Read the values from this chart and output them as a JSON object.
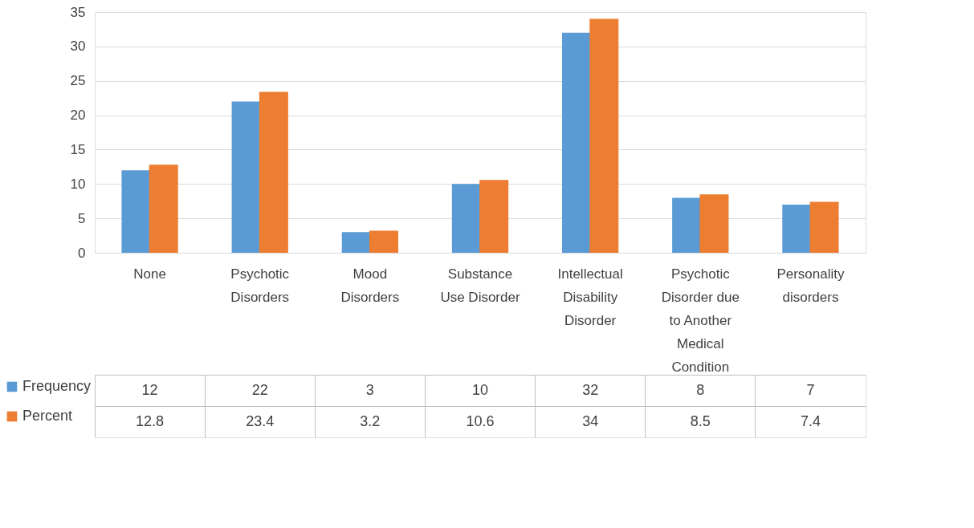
{
  "chart_data": {
    "type": "bar",
    "categories": [
      "None",
      "Psychotic Disorders",
      "Mood Disorders",
      "Substance Use Disorder",
      "Intellectual Disability Disorder",
      "Psychotic Disorder due to Another Medical Condition",
      "Personality disorders"
    ],
    "series": [
      {
        "name": "Frequency",
        "color": "#5b9bd5",
        "values": [
          12,
          22,
          3,
          10,
          32,
          8,
          7
        ]
      },
      {
        "name": "Percent",
        "color": "#ed7d31",
        "values": [
          12.8,
          23.4,
          3.2,
          10.6,
          34,
          8.5,
          7.4
        ]
      }
    ],
    "ylim": [
      0,
      35
    ],
    "yticks": [
      0,
      5,
      10,
      15,
      20,
      25,
      30,
      35
    ],
    "grid": "y",
    "legend": "bottom",
    "data_labels": true
  }
}
